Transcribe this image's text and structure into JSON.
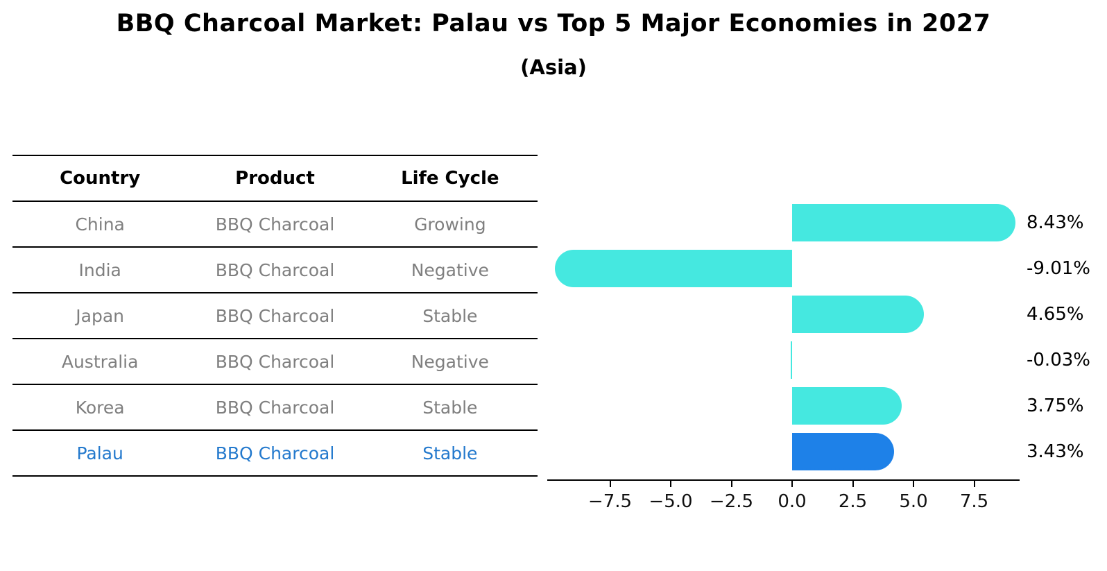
{
  "title": "BBQ Charcoal Market: Palau vs Top 5 Major Economies in 2027",
  "subtitle": "(Asia)",
  "table": {
    "headers": [
      "Country",
      "Product",
      "Life Cycle"
    ],
    "rows": [
      {
        "country": "China",
        "product": "BBQ Charcoal",
        "life_cycle": "Growing",
        "highlight": false
      },
      {
        "country": "India",
        "product": "BBQ Charcoal",
        "life_cycle": "Negative",
        "highlight": false
      },
      {
        "country": "Japan",
        "product": "BBQ Charcoal",
        "life_cycle": "Stable",
        "highlight": false
      },
      {
        "country": "Australia",
        "product": "BBQ Charcoal",
        "life_cycle": "Negative",
        "highlight": false
      },
      {
        "country": "Korea",
        "product": "BBQ Charcoal",
        "life_cycle": "Stable",
        "highlight": false
      },
      {
        "country": "Palau",
        "product": "BBQ Charcoal",
        "life_cycle": "Stable",
        "highlight": true
      }
    ]
  },
  "chart_data": {
    "type": "bar",
    "orientation": "horizontal",
    "title": "BBQ Charcoal Market: Palau vs Top 5 Major Economies in 2027",
    "subtitle": "(Asia)",
    "categories": [
      "China",
      "India",
      "Japan",
      "Australia",
      "Korea",
      "Palau"
    ],
    "values": [
      8.43,
      -9.01,
      4.65,
      -0.03,
      3.75,
      3.43
    ],
    "value_labels": [
      "8.43%",
      "-9.01%",
      "4.65%",
      "-0.03%",
      "3.75%",
      "3.43%"
    ],
    "xticks": [
      -7.5,
      -5.0,
      -2.5,
      0.0,
      2.5,
      5.0,
      7.5
    ],
    "xtick_labels": [
      "−7.5",
      "−5.0",
      "−2.5",
      "0.0",
      "2.5",
      "5.0",
      "7.5"
    ],
    "xlim": [
      -10.1,
      9.35
    ],
    "grid": false,
    "legend": false,
    "highlight_index": 5,
    "highlight_style": "dotted-outline-rounded-bar"
  },
  "colors": {
    "bar": "#45E8E0",
    "highlight_bar": "#1E81E8",
    "highlight_text": "#2379CD",
    "row_text": "#7F7F7F",
    "header_text": "#000000",
    "axis": "#000000"
  }
}
